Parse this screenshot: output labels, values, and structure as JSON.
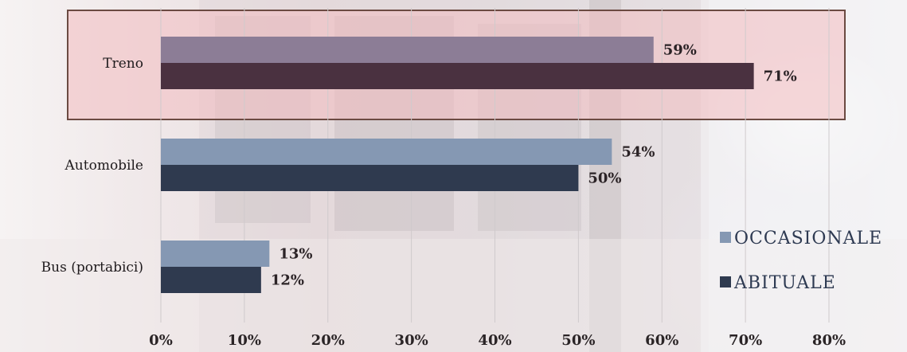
{
  "chart_data": {
    "type": "bar",
    "orientation": "horizontal",
    "categories": [
      "Treno",
      "Automobile",
      "Bus (portabici)"
    ],
    "series": [
      {
        "name": "OCCASIONALE",
        "values": [
          59,
          54,
          13
        ],
        "labels": [
          "59%",
          "54%",
          "13%"
        ]
      },
      {
        "name": "ABITUALE",
        "values": [
          71,
          50,
          12
        ],
        "labels": [
          "71%",
          "50%",
          "12%"
        ]
      }
    ],
    "xlim": [
      0,
      80
    ],
    "x_ticks": [
      0,
      10,
      20,
      30,
      40,
      50,
      60,
      70,
      80
    ],
    "x_tick_labels": [
      "0%",
      "10%",
      "20%",
      "30%",
      "40%",
      "50%",
      "60%",
      "70%",
      "80%"
    ],
    "grid": "vertical",
    "legend_position": "right",
    "highlighted_category": "Treno",
    "colors": {
      "occasionale": "#8598b3",
      "abituale": "#2f3a4f",
      "occasionale_highlight": "#8c7d96",
      "abituale_highlight": "#4a3140",
      "highlight_fill": "#f3bcc0",
      "highlight_border": "#6b4a42"
    }
  }
}
